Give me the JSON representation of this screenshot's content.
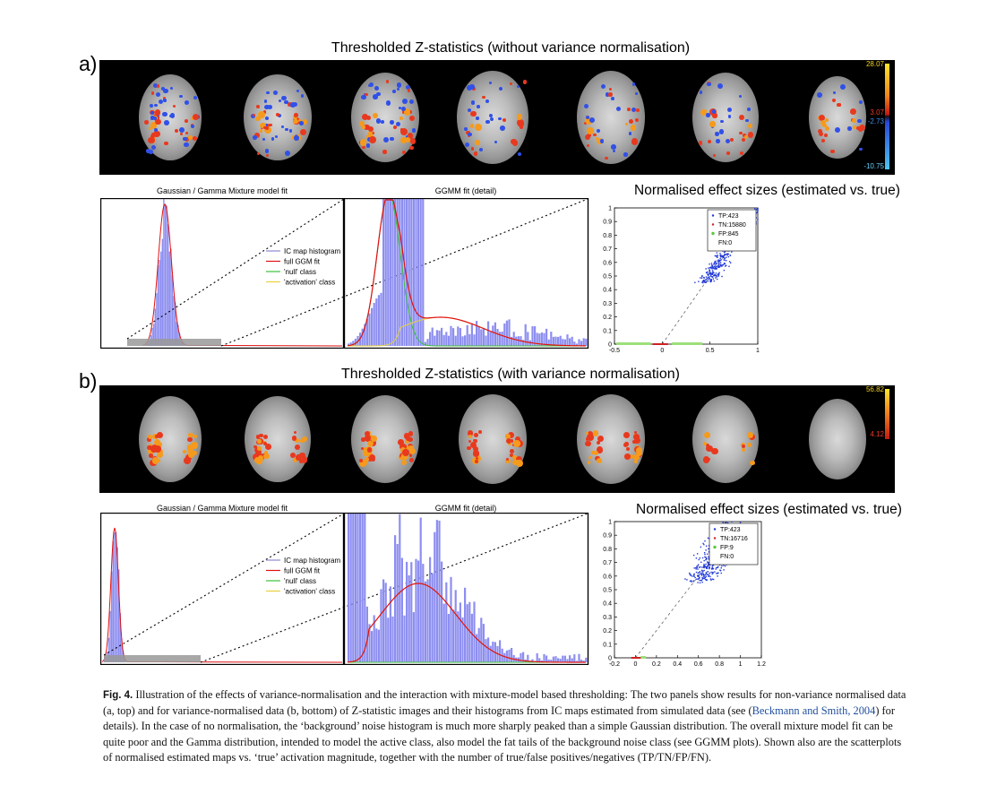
{
  "panel_a": {
    "letter": "a)",
    "strip_title": "Thresholded Z-statistics (without variance normalisation)",
    "colorbar_labels": [
      "28.07",
      "3.07",
      "-2.73",
      "-10.75"
    ],
    "left_title": "Gaussian / Gamma Mixture model fit",
    "mid_title": "GGMM fit (detail)",
    "scatter_title": "Normalised effect sizes (estimated vs. true)",
    "hist_legend": [
      "IC map histogram",
      "full GGM fit",
      "'null' class",
      "'activation' class"
    ],
    "scatter_legend": [
      "TP:423",
      "TN:15880",
      "FP:845",
      "FN:0"
    ]
  },
  "panel_b": {
    "letter": "b)",
    "strip_title": "Thresholded Z-statistics (with variance normalisation)",
    "colorbar_labels": [
      "56.82",
      "4.12"
    ],
    "left_title": "Gaussian / Gamma Mixture model fit",
    "mid_title": "GGMM fit (detail)",
    "scatter_title": "Normalised effect sizes (estimated vs. true)",
    "hist_legend": [
      "IC map histogram",
      "full GGM fit",
      "'null' class",
      "'activation' class"
    ],
    "scatter_legend": [
      "TP:423",
      "TN:16716",
      "FP:9",
      "FN:0"
    ]
  },
  "chart_data": [
    {
      "type": "scatter",
      "title": "Normalised effect sizes (estimated vs. true)",
      "xlim": [
        -0.5,
        1
      ],
      "ylim": [
        0,
        1
      ],
      "xticks": [
        "-0.5",
        "0",
        "0.5",
        "1"
      ],
      "yticks": [
        "0",
        "0.1",
        "0.2",
        "0.3",
        "0.4",
        "0.5",
        "0.6",
        "0.7",
        "0.8",
        "0.9",
        "1"
      ],
      "legend": [
        "TP:423",
        "TN:15880",
        "FP:845",
        "FN:0"
      ],
      "legend_placement": "top-right"
    },
    {
      "type": "scatter",
      "title": "Normalised effect sizes (estimated vs. true)",
      "xlim": [
        -0.2,
        1.2
      ],
      "ylim": [
        0,
        1
      ],
      "xticks": [
        "-0.2",
        "0",
        "0.2",
        "0.4",
        "0.6",
        "0.8",
        "1",
        "1.2"
      ],
      "yticks": [
        "0",
        "0.1",
        "0.2",
        "0.3",
        "0.4",
        "0.5",
        "0.6",
        "0.7",
        "0.8",
        "0.9",
        "1"
      ],
      "legend": [
        "TP:423",
        "TN:16716",
        "FP:9",
        "FN:0"
      ],
      "legend_placement": "top-right"
    }
  ],
  "caption": {
    "label": "Fig. 4.",
    "text_1": " Illustration of the effects of variance-normalisation and the interaction with mixture-model based thresholding: The two panels show results for non-variance normalised data (a, top) and for variance-normalised data (b, bottom) of Z-statistic images and their histograms from IC maps estimated from simulated data (see (",
    "citation": "Beckmann and Smith, 2004",
    "text_2": ") for details). In the case of no normalisation, the ‘background’ noise histogram is much more sharply peaked than a simple Gaussian distribution. The overall mixture model fit can be quite poor and the Gamma distribution, intended to model the active class, also model the fat tails of the background noise class (see GGMM plots). Shown also are the scatterplots of normalised estimated maps vs. ‘true’ activation magnitude, together with the number of true/false positives/negatives (TP/TN/FP/FN)."
  },
  "colors": {
    "blob_red": "#e8391e",
    "blob_orange": "#f59a1c",
    "blob_blue": "#3050e8",
    "hist": "#8d8ef0",
    "ggm": "#e01010",
    "null": "#3cc23c",
    "act": "#e8d23c"
  }
}
